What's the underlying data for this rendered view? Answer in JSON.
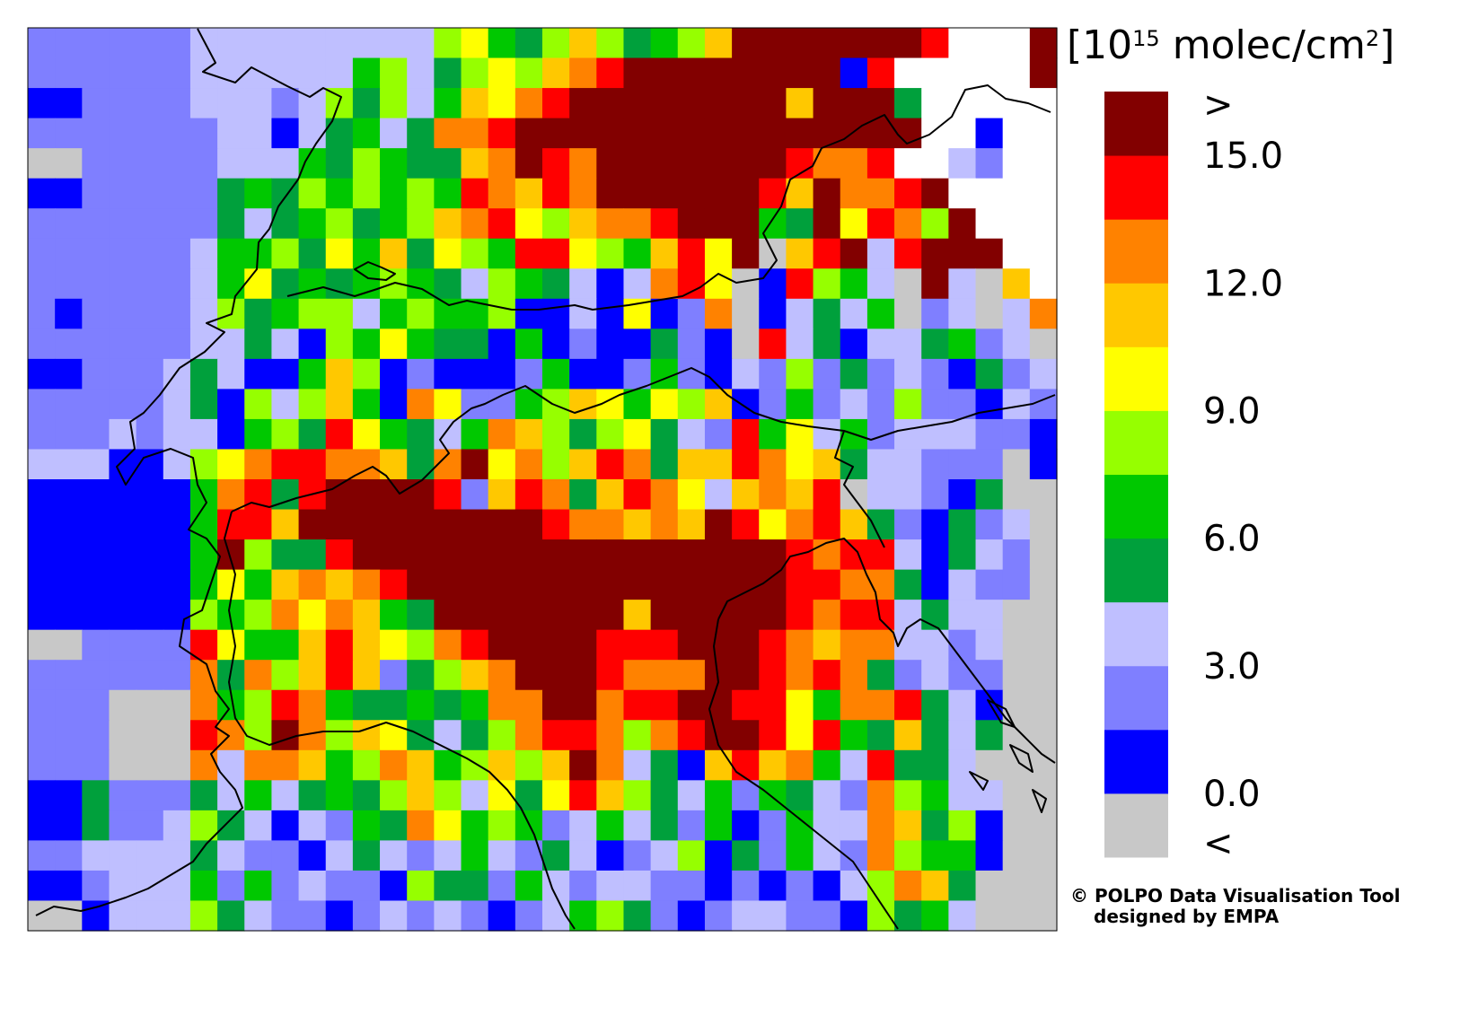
{
  "map": {
    "units_prefix": "[10",
    "units_exponent": "15",
    "units_suffix": " molec/cm",
    "units_square": "2",
    "units_close": "]",
    "legend": {
      "colors": [
        "#c8c8c8",
        "#0000ff",
        "#7f7fff",
        "#bfbfff",
        "#00a03c",
        "#00c800",
        "#96ff00",
        "#ffff00",
        "#ffc800",
        "#ff8200",
        "#ff0000",
        "#820000"
      ],
      "labels": [
        "<",
        "0.0",
        "3.0",
        "6.0",
        "9.0",
        "12.0",
        "15.0",
        ">"
      ]
    },
    "no_data_color": "#ffffff",
    "credit_line1": "© POLPO Data Visualisation Tool",
    "credit_line2": "designed by EMPA",
    "grid": {
      "rows": 30,
      "cols": 38,
      "description": "category index per cell: -1=no data, 0=<, 1=0-1.5, 2=1.5-3, ... 11=>15",
      "cells": [
        "2 2 2 2 2 2 3 3 3 3 3 3 3 3 3 6 7 5 4 6 8 6 4 5 6 8 11 11 11 11 11 11 11 10 -1 -1 -1 11",
        "2 2 2 2 2 2 3 3 3 3 3 3 5 6 3 4 6 7 6 8 9 10 11 11 11 11 11 11 11 11 1 10 -1 -1 -1 -1 -1 11",
        "1 1 2 2 2 2 3 3 3 2 3 6 4 6 3 5 8 7 9 10 11 11 11 11 11 11 11 11 8 11 11 11 4 -1 -1 -1 -1 -1",
        "2 2 2 2 2 2 2 3 3 1 3 4 5 3 4 9 9 10 11 11 11 11 11 11 11 11 11 11 11 11 11 11 11 -1 -1 1 -1 -1",
        "0 0 2 2 2 2 2 3 3 3 5 4 6 5 4 4 8 9 11 10 9 11 11 11 11 11 11 11 10 9 9 10 -1 -1 3 2 -1 -1",
        "1 1 2 2 2 2 2 4 5 4 6 5 6 5 6 5 10 9 8 10 9 11 11 11 11 11 11 10 8 11 9 9 10 11 -1 -1 -1 -1",
        "2 2 2 2 2 2 2 4 3 4 5 6 4 5 6 8 9 10 7 6 8 9 9 10 11 11 11 5 4 11 7 10 9 6 11 -1 -1 -1",
        "2 2 2 2 2 2 3 5 5 6 4 7 5 8 4 7 6 5 10 10 7 6 5 8 10 7 11 0 8 10 11 3 10 11 11 11 -1 -1",
        "2 2 2 2 2 2 3 5 7 4 5 4 5 6 5 4 3 6 5 4 3 1 3 9 10 7 0 1 10 6 5 3 0 11 3 0 8 -1",
        "2 1 2 2 2 2 3 6 4 5 6 6 3 5 6 5 5 6 1 1 3 1 7 1 2 9 0 1 3 4 3 5 0 2 3 0 3 9",
        "2 2 2 2 2 2 3 3 4 3 1 6 5 7 5 4 4 1 5 1 2 1 1 4 2 1 0 10 3 4 1 3 3 4 5 2 3 0",
        "1 1 2 2 2 3 4 3 1 1 5 8 6 1 2 1 1 1 2 5 1 1 2 5 2 1 3 2 6 2 4 2 3 2 1 4 2 3",
        "2 2 2 2 2 3 4 1 6 3 6 8 5 1 9 7 2 2 5 6 8 7 5 7 6 8 1 2 5 2 3 2 6 2 2 1 3 2",
        "2 2 2 3 2 3 3 1 5 6 4 10 7 5 4 3 5 9 8 6 4 6 7 4 3 2 10 5 7 3 5 2 3 3 3 2 2 1",
        "3 3 3 1 1 3 6 7 9 10 10 9 9 8 4 9 11 7 9 6 8 10 9 4 8 8 10 9 7 8 4 3 3 2 2 2 0 1",
        "1 1 1 1 1 1 5 9 10 4 10 11 11 11 11 10 2 8 10 9 4 8 10 9 7 3 8 9 8 10 0 3 3 2 1 4 0 0",
        "1 1 1 1 1 1 5 10 10 8 11 11 11 11 11 11 11 11 11 10 9 9 8 9 8 11 10 7 9 10 8 4 2 1 4 2 3 0",
        "1 1 1 1 1 1 5 11 6 4 4 10 11 11 11 11 11 11 11 11 11 11 11 11 11 11 11 11 10 9 10 10 3 1 4 3 2 0",
        "1 1 1 1 1 1 5 7 5 8 9 8 9 10 11 11 11 11 11 11 11 11 11 11 11 11 11 11 10 10 9 9 4 1 3 2 2 0",
        "1 1 1 1 1 1 6 5 6 9 7 9 8 5 4 11 11 11 11 11 11 11 8 11 11 11 11 11 10 9 10 10 3 4 3 3 0 0",
        "0 0 2 2 2 2 10 7 5 5 8 10 8 7 6 9 10 11 11 11 11 10 10 10 11 11 11 10 9 8 9 9 3 3 2 3 0 0",
        "2 2 2 2 2 2 9 4 9 6 8 10 8 2 4 6 8 9 11 11 11 10 9 9 9 11 11 10 9 10 9 4 2 3 2 2 0 0",
        "2 2 2 0 0 0 9 5 6 10 9 5 4 4 5 4 5 9 9 11 11 9 10 10 11 11 10 10 7 5 9 9 10 4 3 1 0 0",
        "2 2 2 0 0 0 10 9 6 11 9 6 8 7 4 3 4 6 9 10 10 9 6 9 10 11 11 10 7 10 5 4 8 4 3 4 0 0",
        "2 2 2 0 0 0 9 3 9 9 8 5 6 9 8 5 6 8 6 8 11 9 3 4 1 8 10 8 9 5 3 10 4 4 3 0 0 0",
        "1 1 4 2 2 2 4 3 5 3 4 5 4 6 8 6 3 7 4 7 10 8 6 4 3 5 2 5 4 3 2 9 6 5 3 3 0 0",
        "1 1 4 2 2 3 6 4 3 1 3 2 5 4 9 7 5 6 5 2 3 5 3 4 2 5 1 2 5 3 3 9 8 4 6 1 0 0",
        "2 2 3 3 3 3 4 3 2 2 1 3 4 3 2 3 5 3 2 4 3 1 2 3 6 1 4 2 5 3 2 9 6 5 5 1 0 0",
        "1 1 2 3 3 3 5 2 5 2 3 2 2 1 6 4 4 2 5 3 2 3 3 2 2 1 2 1 2 1 3 6 9 8 4 0 0 0",
        "0 0 1 3 3 3 6 4 3 2 2 1 2 3 2 3 2 1 2 3 5 6 4 2 1 2 3 3 2 2 1 6 4 5 3 0 0 0"
      ]
    }
  }
}
